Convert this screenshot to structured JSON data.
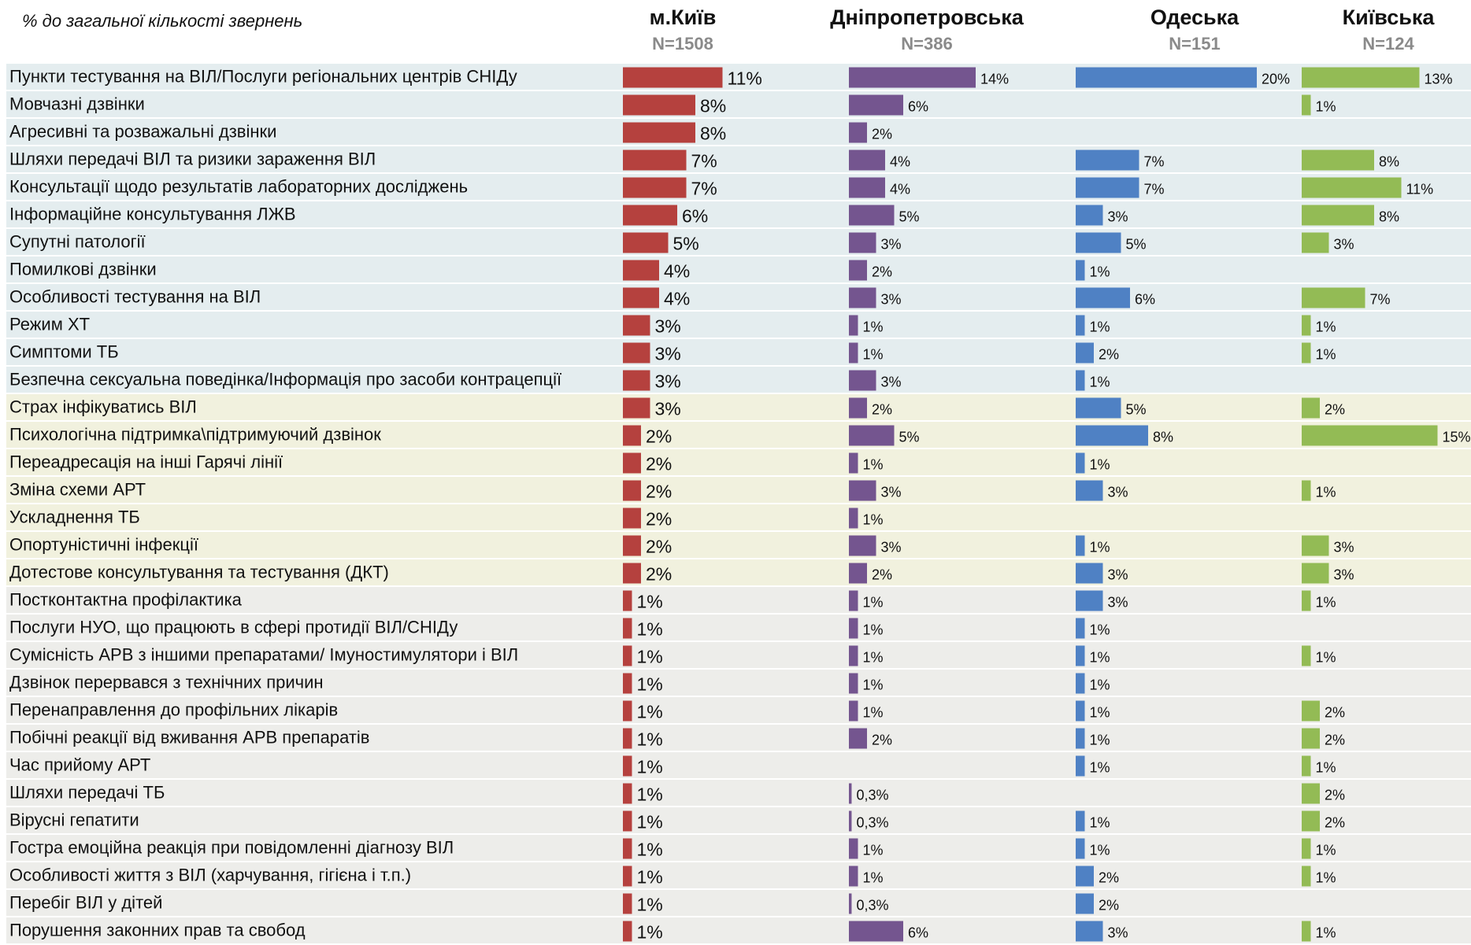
{
  "chart_data": {
    "type": "bar",
    "title": "% до загальної кількості звернень",
    "categories": [
      "Пункти тестування на ВІЛ/Послуги регіональних центрів СНІДу",
      "Мовчазні дзвінки",
      "Агресивні та розважальні дзвінки",
      "Шляхи передачі ВІЛ та ризики зараження ВІЛ",
      "Консультації щодо результатів лабораторних досліджень",
      "Інформаційне консультування ЛЖВ",
      "Супутні патології",
      "Помилкові дзвінки",
      "Особливості тестування на ВІЛ",
      "Режим ХТ",
      "Симптоми ТБ",
      "Безпечна сексуальна поведінка/Інформація про засоби контрацепції",
      "Страх інфікуватись ВІЛ",
      "Психологічна підтримка\\підтримуючий дзвінок",
      "Переадресація на інші Гарячі лінії",
      "Зміна схеми АРТ",
      "Ускладнення ТБ",
      "Опортуністичні інфекції",
      "Дотестове консультування та тестування (ДКТ)",
      "Постконтактна профілактика",
      "Послуги НУО, що працюють в сфері протидії ВІЛ/СНІДу",
      "Сумісність АРВ з іншими препаратами/ Імуностимулятори і ВІЛ",
      "Дзвінок перервався з технічних причин",
      "Перенаправлення до профільних лікарів",
      "Побічні реакції від вживання АРВ препаратів",
      "Час прийому АРТ",
      "Шляхи передачі ТБ",
      "Вірусні гепатити",
      "Гостра емоційна реакція при повідомленні діагнозу ВІЛ",
      "Особливості життя з ВІЛ (харчування, гігієна і т.п.)",
      "Перебіг ВІЛ у дітей",
      "Порушення законних прав та свобод"
    ],
    "series": [
      {
        "name": "м.Київ",
        "n": "N=1508",
        "color": "#b5413e",
        "values": [
          11,
          8,
          8,
          7,
          7,
          6,
          5,
          4,
          4,
          3,
          3,
          3,
          3,
          2,
          2,
          2,
          2,
          2,
          2,
          1,
          1,
          1,
          1,
          1,
          1,
          1,
          1,
          1,
          1,
          1,
          1,
          1
        ],
        "value_labels": [
          "11%",
          "8%",
          "8%",
          "7%",
          "7%",
          "6%",
          "5%",
          "4%",
          "4%",
          "3%",
          "3%",
          "3%",
          "3%",
          "2%",
          "2%",
          "2%",
          "2%",
          "2%",
          "2%",
          "1%",
          "1%",
          "1%",
          "1%",
          "1%",
          "1%",
          "1%",
          "1%",
          "1%",
          "1%",
          "1%",
          "1%",
          "1%"
        ]
      },
      {
        "name": "Дніпропетровська",
        "n": "N=386",
        "color": "#74558f",
        "values": [
          14,
          6,
          2,
          4,
          4,
          5,
          3,
          2,
          3,
          1,
          1,
          3,
          2,
          5,
          1,
          3,
          1,
          3,
          2,
          1,
          1,
          1,
          1,
          1,
          2,
          null,
          0.3,
          0.3,
          1,
          1,
          0.3,
          6
        ],
        "value_labels": [
          "14%",
          "6%",
          "2%",
          "4%",
          "4%",
          "5%",
          "3%",
          "2%",
          "3%",
          "1%",
          "1%",
          "3%",
          "2%",
          "5%",
          "1%",
          "3%",
          "1%",
          "3%",
          "2%",
          "1%",
          "1%",
          "1%",
          "1%",
          "1%",
          "2%",
          null,
          "0,3%",
          "0,3%",
          "1%",
          "1%",
          "0,3%",
          "6%"
        ]
      },
      {
        "name": "Одеська",
        "n": "N=151",
        "color": "#4f81c4",
        "values": [
          20,
          null,
          null,
          7,
          7,
          3,
          5,
          1,
          6,
          1,
          2,
          1,
          5,
          8,
          1,
          3,
          null,
          1,
          3,
          3,
          1,
          1,
          1,
          1,
          1,
          1,
          null,
          1,
          1,
          2,
          2,
          3
        ],
        "value_labels": [
          "20%",
          null,
          null,
          "7%",
          "7%",
          "3%",
          "5%",
          "1%",
          "6%",
          "1%",
          "2%",
          "1%",
          "5%",
          "8%",
          "1%",
          "3%",
          null,
          "1%",
          "3%",
          "3%",
          "1%",
          "1%",
          "1%",
          "1%",
          "1%",
          "1%",
          null,
          "1%",
          "1%",
          "2%",
          "2%",
          "3%"
        ]
      },
      {
        "name": "Київська",
        "n": "N=124",
        "color": "#93bb55",
        "values": [
          13,
          1,
          null,
          8,
          11,
          8,
          3,
          null,
          7,
          1,
          1,
          null,
          2,
          15,
          null,
          1,
          null,
          3,
          3,
          1,
          null,
          1,
          null,
          2,
          2,
          1,
          2,
          2,
          1,
          1,
          null,
          1
        ],
        "value_labels": [
          "13%",
          "1%",
          null,
          "8%",
          "11%",
          "8%",
          "3%",
          null,
          "7%",
          "1%",
          "1%",
          null,
          "2%",
          "15%",
          null,
          "1%",
          null,
          "3%",
          "3%",
          "1%",
          null,
          "1%",
          null,
          "2%",
          "2%",
          "1%",
          "2%",
          "2%",
          "1%",
          "1%",
          null,
          "1%"
        ]
      }
    ]
  }
}
